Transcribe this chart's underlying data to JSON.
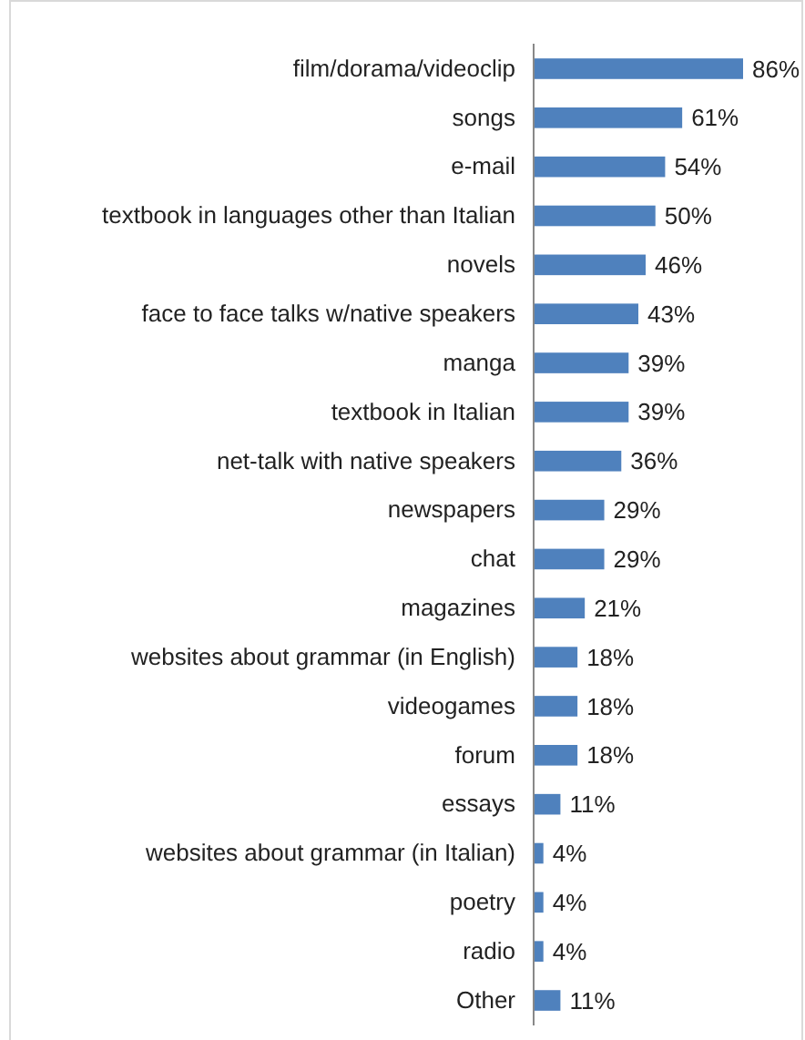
{
  "chart_data": {
    "type": "bar",
    "orientation": "horizontal",
    "categories": [
      "film/dorama/videoclip",
      "songs",
      "e-mail",
      "textbook in languages other than Italian",
      "novels",
      "face to face talks w/native speakers",
      "manga",
      "textbook in Italian",
      "net-talk with native speakers",
      "newspapers",
      "chat",
      "magazines",
      "websites about grammar (in English)",
      "videogames",
      "forum",
      "essays",
      "websites about grammar (in Italian)",
      "poetry",
      "radio",
      "Other"
    ],
    "values": [
      86,
      61,
      54,
      50,
      46,
      43,
      39,
      39,
      36,
      29,
      29,
      21,
      18,
      18,
      18,
      11,
      4,
      4,
      4,
      11
    ],
    "value_labels": [
      "86%",
      "61%",
      "54%",
      "50%",
      "46%",
      "43%",
      "39%",
      "39%",
      "36%",
      "29%",
      "29%",
      "21%",
      "18%",
      "18%",
      "18%",
      "11%",
      "4%",
      "4%",
      "4%",
      "11%"
    ],
    "color": "#4f81bd"
  }
}
